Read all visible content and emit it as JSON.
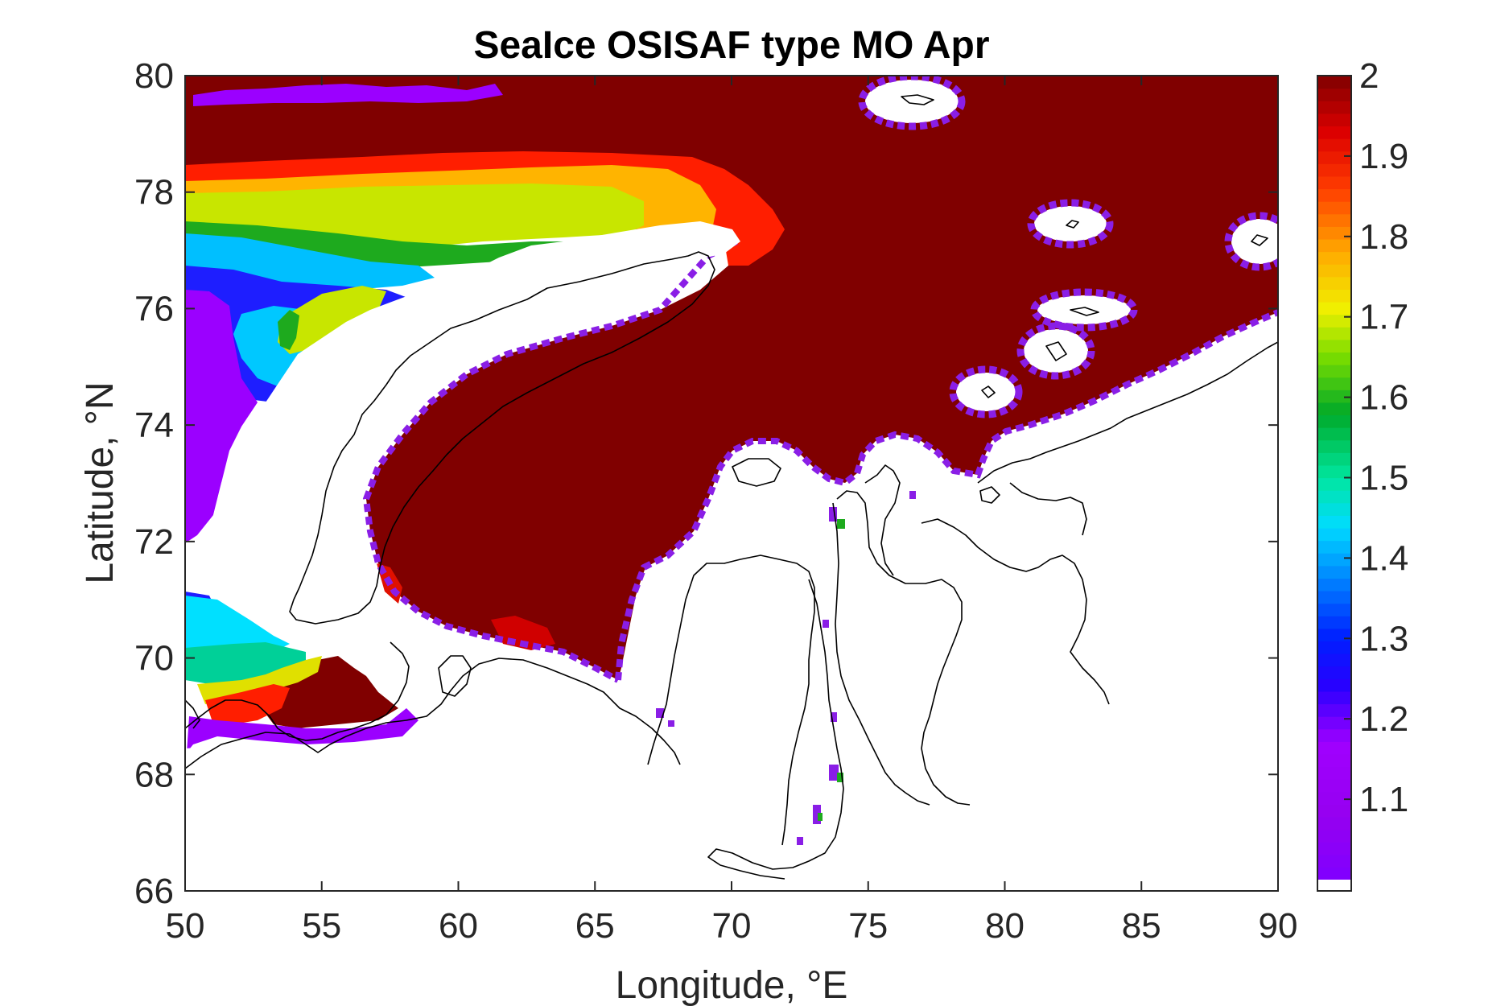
{
  "chart_data": {
    "type": "heatmap",
    "title": "SeaIce OSISAF type MO Apr",
    "xlabel": "Longitude, °E",
    "ylabel": "Latitude, °N",
    "xlim": [
      50,
      90
    ],
    "ylim": [
      66,
      80
    ],
    "xticks": [
      "50",
      "55",
      "60",
      "65",
      "70",
      "75",
      "80",
      "85",
      "90"
    ],
    "yticks": [
      "66",
      "68",
      "70",
      "72",
      "74",
      "76",
      "78",
      "80"
    ],
    "colorbar": {
      "range": [
        1.0,
        2.0
      ],
      "ticks": [
        "1.1",
        "1.2",
        "1.3",
        "1.4",
        "1.5",
        "1.6",
        "1.7",
        "1.8",
        "1.9",
        "2"
      ],
      "bottom_bin_color": "#ffffff",
      "colormap": "jet-like: violet → blue → cyan → green → yellow → orange → red → dark red"
    },
    "ice_class_colors": {
      "1.1": "#7a1ee0",
      "1.2": "#9b00ff",
      "1.3": "#1e1eff",
      "1.4": "#00bfff",
      "1.5": "#00e0a8",
      "1.6": "#1eaa1e",
      "1.7": "#c8e600",
      "1.8": "#ffb400",
      "1.9": "#ff1e00",
      "2": "#800000"
    },
    "regions": [
      {
        "value": 2.0,
        "description": "Kara Sea and northern Barents Sea (dominant multi-year/first-year class 2)"
      },
      {
        "value": 1.9,
        "description": "narrow band north-west of Novaya Zemlya tip near 70-72°E, 77°N and south of 70°N near 55-58°E"
      },
      {
        "value": 1.75,
        "description": "band near 66-70°E, 77.5-78°N"
      },
      {
        "value": 1.65,
        "description": "band 51-66°E, 77.3-77.9°N and patch near 55°E, 75.8°N"
      },
      {
        "value": 1.45,
        "description": "Barents Sea 50-55°E near 77°N and 70°N"
      },
      {
        "value": 1.3,
        "description": "Barents Sea 51-57°E, 76-74°N"
      },
      {
        "value": 1.15,
        "description": "coastal fringes and western edge 50-52°E, 71-75°N"
      }
    ]
  }
}
